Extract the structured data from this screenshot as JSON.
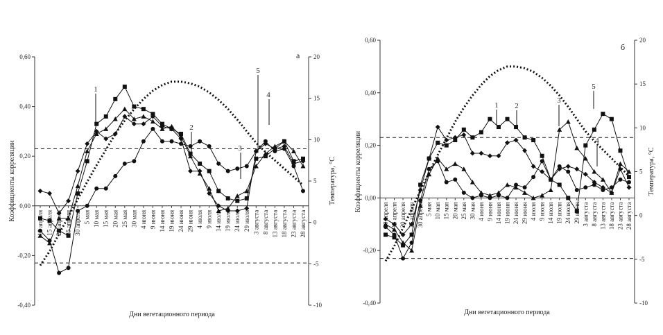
{
  "chart_data": [
    {
      "type": "line",
      "panel_label": "а",
      "xlabel": "Дни вегетационного периода",
      "ylabel": "Коэффициенты корреляции",
      "y2label": "Температура, °С",
      "ylim": [
        -0.4,
        0.6
      ],
      "y2lim": [
        -10,
        20
      ],
      "yticks": [
        "0,60",
        "0,40",
        "0,20",
        "0,00",
        "-0,20",
        "-0,40"
      ],
      "y2ticks": [
        "20",
        "15",
        "10",
        "5",
        "0",
        "-5",
        "-10"
      ],
      "significance": [
        0.23,
        -0.23
      ],
      "categories": [
        "10 апреля",
        "15 апреля",
        "20 апреля",
        "25 апреля",
        "30 апреля",
        "5 мая",
        "10 мая",
        "15 мая",
        "20 мая",
        "25 мая",
        "30 мая",
        "4 июня",
        "9 июня",
        "14 июня",
        "19 июня",
        "24 июня",
        "29 июня",
        "4 июля",
        "9 июля",
        "14 июля",
        "19 июля",
        "24 июля",
        "29 июля",
        "3 августа",
        "8 августа",
        "13 августа",
        "18 августа",
        "23 августа",
        "28 августа"
      ],
      "series": [
        {
          "name": "1",
          "marker": "square",
          "values": [
            -0.05,
            -0.06,
            -0.1,
            -0.12,
            0.05,
            0.18,
            0.33,
            0.36,
            0.43,
            0.48,
            0.4,
            0.39,
            0.37,
            0.33,
            0.31,
            0.29,
            0.21,
            0.17,
            0.14,
            0.06,
            0.03,
            0.02,
            0.03,
            0.19,
            0.2,
            0.23,
            0.26,
            0.18,
            0.19
          ]
        },
        {
          "name": "2",
          "marker": "diamond",
          "values": [
            0.06,
            0.05,
            -0.03,
            0.02,
            0.14,
            0.25,
            0.3,
            0.27,
            0.29,
            0.36,
            0.33,
            0.33,
            0.36,
            0.32,
            0.31,
            0.27,
            0.14,
            0.14,
            0.05,
            0.0,
            -0.02,
            -0.02,
            -0.01,
            0.22,
            0.25,
            0.23,
            0.24,
            0.17,
            0.18
          ]
        },
        {
          "name": "3",
          "marker": "triangle",
          "values": [
            -0.12,
            -0.15,
            -0.05,
            -0.05,
            0.08,
            0.22,
            0.29,
            0.31,
            0.35,
            0.39,
            0.35,
            0.36,
            0.34,
            0.31,
            0.32,
            0.28,
            0.2,
            0.13,
            0.07,
            -0.02,
            -0.01,
            0.04,
            0.06,
            0.16,
            0.21,
            0.24,
            0.26,
            0.22,
            0.16
          ]
        },
        {
          "name": "4",
          "marker": "circle",
          "values": [
            -0.1,
            -0.14,
            -0.27,
            -0.25,
            -0.02,
            0.0,
            0.07,
            0.07,
            0.12,
            0.17,
            0.18,
            0.26,
            0.31,
            0.26,
            0.26,
            0.25,
            0.24,
            0.26,
            0.24,
            0.17,
            0.14,
            0.15,
            0.16,
            0.22,
            0.26,
            0.22,
            0.23,
            0.16,
            0.06
          ]
        },
        {
          "name": "5",
          "marker": "dotted",
          "axis": "y2",
          "values": [
            -5.2,
            -3.5,
            -1.4,
            0.7,
            2.8,
            4.9,
            6.9,
            8.8,
            10.7,
            12.3,
            13.7,
            14.9,
            15.9,
            16.6,
            17.0,
            17.0,
            16.8,
            16.4,
            15.7,
            14.8,
            13.7,
            12.4,
            11.0,
            9.6,
            8.5,
            7.5,
            6.5,
            5.5,
            4.5
          ]
        }
      ],
      "annotations": [
        "1",
        "2",
        "3",
        "4",
        "5"
      ]
    },
    {
      "type": "line",
      "panel_label": "б",
      "xlabel": "Дни вегетационного периода",
      "ylabel": "Коэффициенты корреляции",
      "y2label": "Температура, °С",
      "ylim": [
        -0.4,
        0.6
      ],
      "y2lim": [
        -10,
        20
      ],
      "yticks": [
        "0,60",
        "0,40",
        "0,20",
        "0,00",
        "-0,20",
        "-0,40"
      ],
      "y2ticks": [
        "20",
        "15",
        "10",
        "5",
        "0",
        "-5",
        "-10"
      ],
      "significance": [
        0.23,
        -0.23
      ],
      "categories": [
        "10 апреля",
        "15 апреля",
        "20 апреля",
        "25 апреля",
        "30 апреля",
        "5 мая",
        "10 мая",
        "15 мая",
        "20 мая",
        "25 мая",
        "30 мая",
        "4 июня",
        "9 июня",
        "14 июня",
        "19 июня",
        "24 июня",
        "29 июня",
        "4 июля",
        "9 июля",
        "14 июля",
        "19 июля",
        "24 июля",
        "29 июля",
        "3 августа",
        "8 августа",
        "13 августа",
        "18 августа",
        "23 августа",
        "28 августа"
      ],
      "series": [
        {
          "name": "1",
          "marker": "square",
          "values": [
            -0.14,
            -0.15,
            -0.18,
            -0.14,
            0.05,
            0.15,
            0.21,
            0.2,
            0.22,
            0.26,
            0.23,
            0.25,
            0.3,
            0.27,
            0.3,
            0.27,
            0.23,
            0.22,
            0.16,
            0.07,
            0.05,
            0.0,
            -0.05,
            0.2,
            0.26,
            0.32,
            0.3,
            0.18,
            0.08
          ]
        },
        {
          "name": "2",
          "marker": "diamond",
          "values": [
            -0.08,
            -0.1,
            -0.14,
            -0.1,
            0.03,
            0.15,
            0.27,
            0.22,
            0.23,
            0.24,
            0.17,
            0.17,
            0.16,
            0.16,
            0.21,
            0.22,
            0.18,
            0.12,
            0.1,
            0.07,
            0.11,
            0.12,
            0.11,
            0.09,
            0.06,
            0.04,
            0.02,
            0.11,
            0.04
          ]
        },
        {
          "name": "3",
          "marker": "triangle",
          "values": [
            -0.1,
            -0.12,
            -0.17,
            -0.2,
            -0.03,
            0.09,
            0.15,
            0.11,
            0.13,
            0.11,
            0.06,
            0.02,
            0.01,
            0.02,
            0.05,
            0.04,
            0.02,
            0.0,
            0.01,
            0.03,
            0.26,
            0.29,
            0.19,
            0.15,
            0.1,
            0.07,
            0.02,
            0.13,
            0.1
          ]
        },
        {
          "name": "4",
          "marker": "circle",
          "values": [
            -0.11,
            -0.14,
            -0.23,
            -0.17,
            -0.01,
            0.11,
            0.14,
            0.06,
            0.07,
            0.02,
            0.0,
            0.01,
            0.0,
            0.01,
            0.0,
            0.05,
            0.04,
            0.08,
            0.14,
            0.07,
            0.12,
            0.1,
            0.03,
            0.04,
            0.05,
            0.03,
            0.04,
            0.07,
            0.06
          ]
        },
        {
          "name": "5",
          "marker": "dotted",
          "axis": "y2",
          "values": [
            -5.2,
            -3.5,
            -1.4,
            0.7,
            2.8,
            4.9,
            6.9,
            8.8,
            10.7,
            12.3,
            13.7,
            14.9,
            15.9,
            16.6,
            17.0,
            17.0,
            16.8,
            16.4,
            15.7,
            14.8,
            13.7,
            12.4,
            11.0,
            9.6,
            8.5,
            7.5,
            6.5,
            5.5,
            4.5
          ]
        }
      ],
      "annotations": [
        "1",
        "2",
        "3",
        "4",
        "5"
      ]
    }
  ]
}
